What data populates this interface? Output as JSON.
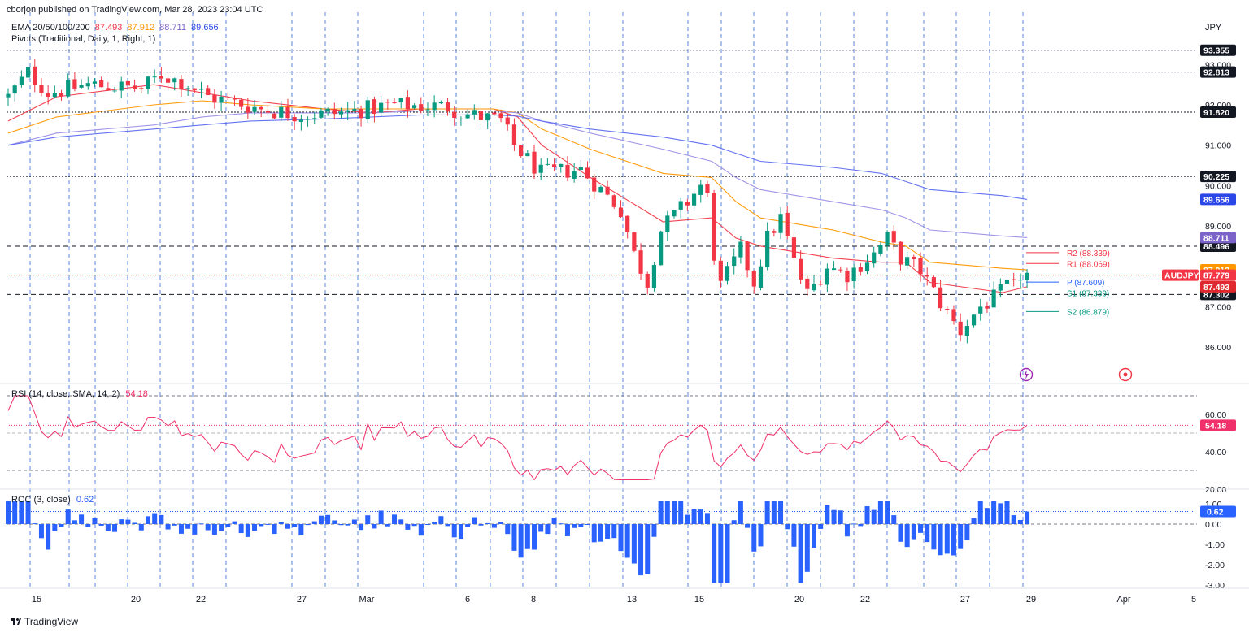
{
  "header": {
    "published": "cborjon published on TradingView.com, Mar 28, 2023 23:04 UTC",
    "currency": "JPY",
    "ema_label": "EMA 20/50/100/200",
    "ema_values": [
      "87.493",
      "87.912",
      "88.711",
      "89.656"
    ],
    "pivots_label": "Pivots (Traditional, Daily, 1, Right, 1)"
  },
  "colors": {
    "up": "#089981",
    "down": "#f23645",
    "ema20": "#f23645",
    "ema50": "#ff9800",
    "ema100": "#9c8ee6",
    "ema200": "#5b6cf0",
    "rsi": "#f0306a",
    "roc": "#2962ff",
    "grid_dash": "#4a7bd8"
  },
  "price_axis": {
    "ticks": [
      "93.000",
      "92.000",
      "91.000",
      "90.000",
      "89.000",
      "87.000",
      "86.000"
    ],
    "levels": [
      {
        "value": 93.355,
        "label": "93.355",
        "style": "dotted",
        "bg": "#131722"
      },
      {
        "value": 92.813,
        "label": "92.813",
        "style": "dotted",
        "bg": "#131722"
      },
      {
        "value": 91.82,
        "label": "91.820",
        "style": "dotted",
        "bg": "#131722"
      },
      {
        "value": 90.225,
        "label": "90.225",
        "style": "dotted",
        "bg": "#131722"
      },
      {
        "value": 88.496,
        "label": "88.496",
        "style": "dashed",
        "bg": "#131722"
      },
      {
        "value": 87.302,
        "label": "87.302",
        "style": "dashed",
        "bg": "#131722"
      }
    ],
    "value_tags": [
      {
        "value": 89.656,
        "label": "89.656",
        "bg": "#2b47e8"
      },
      {
        "value": 88.711,
        "label": "88.711",
        "bg": "#7b63c9"
      },
      {
        "value": 87.912,
        "label": "87.912",
        "bg": "#ff9800"
      },
      {
        "value": 87.779,
        "label": "87.779",
        "bg": "#f23645"
      },
      {
        "value": 87.493,
        "label": "87.493",
        "bg": "#e0292f"
      }
    ],
    "symbol_tag": "AUDJPY"
  },
  "pivots": [
    {
      "label": "R2 (88.339)",
      "value": 88.339,
      "color": "#f23645"
    },
    {
      "label": "R1 (88.069)",
      "value": 88.069,
      "color": "#f23645"
    },
    {
      "label": "P (87.609)",
      "value": 87.609,
      "color": "#2962ff"
    },
    {
      "label": "S1 (87.339)",
      "value": 87.339,
      "color": "#089981"
    },
    {
      "label": "S2 (86.879)",
      "value": 86.879,
      "color": "#089981"
    }
  ],
  "rsi": {
    "label": "RSI (14, close, SMA, 14, 2)",
    "value": "54.18",
    "ticks": [
      "60.00",
      "40.00",
      "20.00"
    ]
  },
  "roc": {
    "label": "ROC (3, close)",
    "value": "0.62",
    "ticks": [
      "1.00",
      "0.00",
      "-1.00",
      "-2.00",
      "-3.00"
    ]
  },
  "x_axis": {
    "labels": [
      "15",
      "20",
      "22",
      "27",
      "Mar",
      "6",
      "8",
      "13",
      "15",
      "20",
      "22",
      "27",
      "29",
      "Apr",
      "5"
    ]
  },
  "watermark": "TradingView",
  "chart_data": [
    {
      "type": "line",
      "title": "AUDJPY",
      "xlabel": "",
      "ylabel": "JPY",
      "ylim": [
        85.6,
        93.6
      ],
      "x": [
        "2023-02-14",
        "2023-02-16",
        "2023-02-20",
        "2023-02-22",
        "2023-02-24",
        "2023-02-27",
        "2023-03-01",
        "2023-03-03",
        "2023-03-06",
        "2023-03-07",
        "2023-03-08",
        "2023-03-10",
        "2023-03-13",
        "2023-03-15",
        "2023-03-16",
        "2023-03-17",
        "2023-03-20",
        "2023-03-22",
        "2023-03-23",
        "2023-03-24",
        "2023-03-27",
        "2023-03-28"
      ],
      "series": [
        {
          "name": "AUDJPY",
          "values": [
            92.2,
            92.5,
            92.6,
            92.4,
            91.9,
            91.7,
            91.8,
            92.0,
            91.9,
            91.6,
            90.4,
            89.8,
            88.0,
            89.9,
            87.6,
            88.5,
            87.8,
            88.3,
            88.6,
            87.2,
            87.3,
            87.78
          ]
        },
        {
          "name": "EMA 20",
          "values": [
            91.6,
            92.2,
            92.5,
            92.3,
            92.1,
            91.9,
            91.8,
            91.9,
            91.9,
            91.7,
            91.0,
            90.2,
            89.1,
            89.2,
            88.7,
            88.5,
            88.2,
            88.1,
            88.1,
            87.6,
            87.35,
            87.493
          ]
        },
        {
          "name": "EMA 50",
          "values": [
            91.3,
            91.7,
            92.0,
            92.1,
            92.0,
            91.9,
            91.9,
            91.9,
            91.9,
            91.8,
            91.4,
            90.9,
            90.3,
            90.2,
            89.6,
            89.2,
            88.9,
            88.6,
            88.5,
            88.1,
            87.95,
            87.912
          ]
        },
        {
          "name": "EMA 100",
          "values": [
            91.0,
            91.3,
            91.5,
            91.7,
            91.8,
            91.8,
            91.8,
            91.85,
            91.85,
            91.8,
            91.6,
            91.3,
            90.9,
            90.6,
            90.2,
            89.9,
            89.6,
            89.4,
            89.2,
            88.9,
            88.75,
            88.711
          ]
        },
        {
          "name": "EMA 200",
          "values": [
            91.0,
            91.2,
            91.4,
            91.5,
            91.6,
            91.65,
            91.7,
            91.75,
            91.75,
            91.72,
            91.6,
            91.4,
            91.2,
            91.0,
            90.8,
            90.6,
            90.45,
            90.3,
            90.1,
            89.9,
            89.75,
            89.656
          ]
        }
      ]
    },
    {
      "type": "line",
      "title": "RSI (14, close, SMA, 14, 2)",
      "ylim": [
        20,
        75
      ],
      "x": [
        "2023-02-14",
        "2023-02-16",
        "2023-02-20",
        "2023-02-22",
        "2023-02-24",
        "2023-02-27",
        "2023-03-01",
        "2023-03-03",
        "2023-03-06",
        "2023-03-07",
        "2023-03-08",
        "2023-03-10",
        "2023-03-13",
        "2023-03-15",
        "2023-03-16",
        "2023-03-17",
        "2023-03-20",
        "2023-03-22",
        "2023-03-23",
        "2023-03-24",
        "2023-03-27",
        "2023-03-28"
      ],
      "series": [
        {
          "name": "RSI",
          "values": [
            72,
            60,
            66,
            58,
            45,
            46,
            55,
            56,
            54,
            46,
            30,
            33,
            30,
            56,
            35,
            54,
            44,
            54,
            56,
            35,
            45,
            54.18
          ]
        }
      ]
    },
    {
      "type": "bar",
      "title": "ROC (3, close)",
      "ylim": [
        -3.2,
        1.3
      ],
      "categories": [
        "2023-02-14",
        "2023-02-16",
        "2023-02-20",
        "2023-02-22",
        "2023-02-24",
        "2023-02-27",
        "2023-03-01",
        "2023-03-03",
        "2023-03-06",
        "2023-03-07",
        "2023-03-08",
        "2023-03-10",
        "2023-03-13",
        "2023-03-15",
        "2023-03-16",
        "2023-03-17",
        "2023-03-20",
        "2023-03-22",
        "2023-03-23",
        "2023-03-24",
        "2023-03-27",
        "2023-03-28"
      ],
      "series": [
        {
          "name": "ROC",
          "values": [
            1.1,
            -0.6,
            0.5,
            -0.4,
            -0.5,
            -0.3,
            0.4,
            0.3,
            0.1,
            -0.3,
            -1.3,
            -0.6,
            -1.8,
            1.2,
            -2.8,
            1.1,
            -1.5,
            0.4,
            0.6,
            -1.7,
            0.7,
            0.62
          ]
        }
      ]
    }
  ]
}
